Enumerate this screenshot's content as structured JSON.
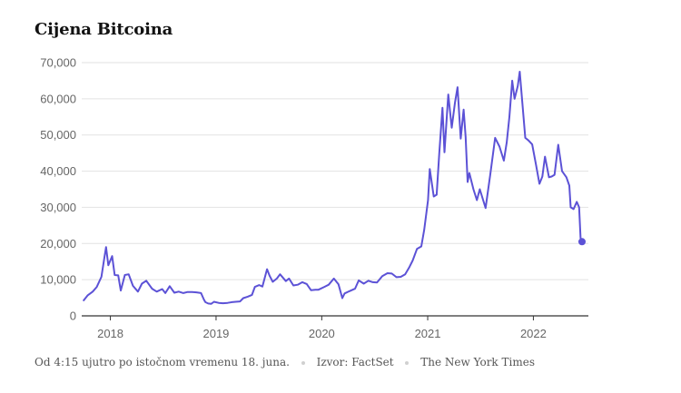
{
  "chart_data": {
    "type": "line",
    "title": "Cijena Bitcoina",
    "xlabel": "",
    "ylabel": "",
    "y_ticks": [
      "0",
      "10,000",
      "20,000",
      "30,000",
      "40,000",
      "50,000",
      "60,000",
      "70,000"
    ],
    "ylim": [
      0,
      70000
    ],
    "x_ticks": [
      "2018",
      "2019",
      "2020",
      "2021",
      "2022"
    ],
    "xlim": [
      "2017-09-24",
      "2022-07-10"
    ],
    "grid": true,
    "legend": "none",
    "series": [
      {
        "color": "#5c52d6",
        "x": [
          "2017-10-01",
          "2017-10-15",
          "2017-11-01",
          "2017-11-15",
          "2017-12-01",
          "2017-12-10",
          "2017-12-17",
          "2017-12-25",
          "2018-01-07",
          "2018-01-16",
          "2018-01-28",
          "2018-02-06",
          "2018-02-20",
          "2018-03-05",
          "2018-03-20",
          "2018-04-06",
          "2018-04-20",
          "2018-05-05",
          "2018-05-25",
          "2018-06-10",
          "2018-06-29",
          "2018-07-10",
          "2018-07-25",
          "2018-08-10",
          "2018-08-25",
          "2018-09-10",
          "2018-09-25",
          "2018-10-10",
          "2018-10-25",
          "2018-11-10",
          "2018-11-20",
          "2018-11-25",
          "2018-12-05",
          "2018-12-15",
          "2018-12-25",
          "2019-01-10",
          "2019-01-25",
          "2019-02-10",
          "2019-02-25",
          "2019-03-10",
          "2019-03-25",
          "2019-04-05",
          "2019-04-20",
          "2019-05-05",
          "2019-05-15",
          "2019-05-30",
          "2019-06-10",
          "2019-06-26",
          "2019-07-05",
          "2019-07-16",
          "2019-07-30",
          "2019-08-10",
          "2019-08-30",
          "2019-09-10",
          "2019-09-25",
          "2019-10-10",
          "2019-10-26",
          "2019-11-10",
          "2019-11-25",
          "2019-12-10",
          "2019-12-20",
          "2020-01-10",
          "2020-01-25",
          "2020-02-12",
          "2020-02-28",
          "2020-03-12",
          "2020-03-20",
          "2020-04-05",
          "2020-04-25",
          "2020-05-08",
          "2020-05-25",
          "2020-06-10",
          "2020-06-25",
          "2020-07-10",
          "2020-07-28",
          "2020-08-15",
          "2020-08-30",
          "2020-09-15",
          "2020-09-30",
          "2020-10-15",
          "2020-10-30",
          "2020-11-10",
          "2020-11-25",
          "2020-12-10",
          "2020-12-20",
          "2021-01-02",
          "2021-01-08",
          "2021-01-22",
          "2021-02-01",
          "2021-02-10",
          "2021-02-21",
          "2021-02-28",
          "2021-03-13",
          "2021-03-25",
          "2021-04-05",
          "2021-04-14",
          "2021-04-25",
          "2021-05-05",
          "2021-05-12",
          "2021-05-19",
          "2021-05-25",
          "2021-06-08",
          "2021-06-20",
          "2021-06-30",
          "2021-07-20",
          "2021-08-05",
          "2021-08-22",
          "2021-09-06",
          "2021-09-21",
          "2021-10-01",
          "2021-10-10",
          "2021-10-20",
          "2021-10-28",
          "2021-11-08",
          "2021-11-15",
          "2021-11-26",
          "2021-12-04",
          "2021-12-15",
          "2021-12-28",
          "2022-01-10",
          "2022-01-22",
          "2022-02-01",
          "2022-02-10",
          "2022-02-24",
          "2022-03-05",
          "2022-03-15",
          "2022-03-28",
          "2022-04-10",
          "2022-04-25",
          "2022-05-05",
          "2022-05-10",
          "2022-05-20",
          "2022-05-31",
          "2022-06-08",
          "2022-06-13",
          "2022-06-18"
        ],
        "values": [
          4300,
          5700,
          6700,
          8000,
          10800,
          15500,
          19000,
          14000,
          16500,
          11300,
          11200,
          7000,
          11300,
          11500,
          8300,
          6700,
          8900,
          9700,
          7500,
          6700,
          7400,
          6300,
          8200,
          6400,
          6700,
          6300,
          6600,
          6600,
          6500,
          6300,
          4500,
          3800,
          3400,
          3300,
          3900,
          3600,
          3500,
          3600,
          3800,
          3900,
          4000,
          4900,
          5300,
          5800,
          8000,
          8500,
          8100,
          12900,
          11100,
          9400,
          10300,
          11500,
          9600,
          10300,
          8400,
          8600,
          9300,
          8800,
          7100,
          7200,
          7200,
          8000,
          8600,
          10300,
          8700,
          4900,
          6200,
          6800,
          7500,
          9800,
          8900,
          9700,
          9300,
          9200,
          11000,
          11800,
          11700,
          10700,
          10800,
          11500,
          13500,
          15300,
          18500,
          19200,
          23800,
          32000,
          40600,
          33000,
          33500,
          45000,
          57500,
          45200,
          61200,
          52000,
          58800,
          63200,
          49000,
          57000,
          49500,
          37000,
          39500,
          35000,
          32000,
          35000,
          29800,
          39000,
          49200,
          46800,
          42900,
          48000,
          55000,
          65000,
          60000,
          63500,
          67500,
          57000,
          49200,
          48500,
          47400,
          41800,
          36500,
          38500,
          44000,
          38300,
          38500,
          39000,
          47300,
          40000,
          38300,
          36000,
          30000,
          29500,
          31500,
          30000,
          21500,
          20500
        ]
      }
    ]
  },
  "footer": {
    "timestamp": "Od 4:15 ujutro po istočnom vremenu 18. juna.",
    "source": "Izvor: FactSet",
    "credit": "The New York Times"
  }
}
